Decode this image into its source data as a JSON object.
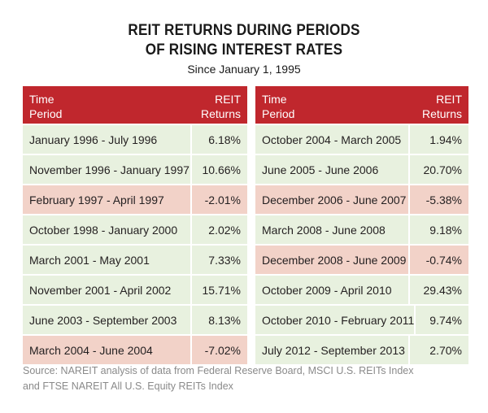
{
  "title_line1": "REIT RETURNS DURING PERIODS",
  "title_line2": "OF RISING INTEREST RATES",
  "subtitle": "Since January 1, 1995",
  "headers": {
    "period_line1": "Time",
    "period_line2": "Period",
    "returns_line1": "REIT",
    "returns_line2": "Returns"
  },
  "left_rows": [
    {
      "period": "January 1996 - July 1996",
      "value": "6.18%",
      "negative": false
    },
    {
      "period": "November 1996 - January 1997",
      "value": "10.66%",
      "negative": false
    },
    {
      "period": "February 1997 - April 1997",
      "value": "-2.01%",
      "negative": true
    },
    {
      "period": "October 1998 - January 2000",
      "value": "2.02%",
      "negative": false
    },
    {
      "period": "March 2001 - May 2001",
      "value": "7.33%",
      "negative": false
    },
    {
      "period": "November 2001 - April 2002",
      "value": "15.71%",
      "negative": false
    },
    {
      "period": "June 2003 - September 2003",
      "value": "8.13%",
      "negative": false
    },
    {
      "period": "March 2004 - June 2004",
      "value": "-7.02%",
      "negative": true
    }
  ],
  "right_rows": [
    {
      "period": "October 2004 - March 2005",
      "value": "1.94%",
      "negative": false
    },
    {
      "period": "June 2005 - June 2006",
      "value": "20.70%",
      "negative": false
    },
    {
      "period": "December 2006 - June 2007",
      "value": "-5.38%",
      "negative": true
    },
    {
      "period": "March 2008 - June 2008",
      "value": "9.18%",
      "negative": false
    },
    {
      "period": "December 2008 - June 2009",
      "value": "-0.74%",
      "negative": true
    },
    {
      "period": "October 2009 - April 2010",
      "value": "29.43%",
      "negative": false
    },
    {
      "period": "October 2010 - February 2011",
      "value": "9.74%",
      "negative": false
    },
    {
      "period": "July 2012 - September 2013",
      "value": "2.70%",
      "negative": false
    }
  ],
  "source_line1": "Source: NAREIT analysis of data from Federal Reserve Board, MSCI U.S. REITs Index",
  "source_line2": "and FTSE NAREIT All U.S. Equity REITs Index",
  "colors": {
    "header_red": "#c0272d",
    "positive_row": "#e8f1df",
    "negative_row": "#f2d2c8",
    "source_text": "#8a8a8a"
  }
}
